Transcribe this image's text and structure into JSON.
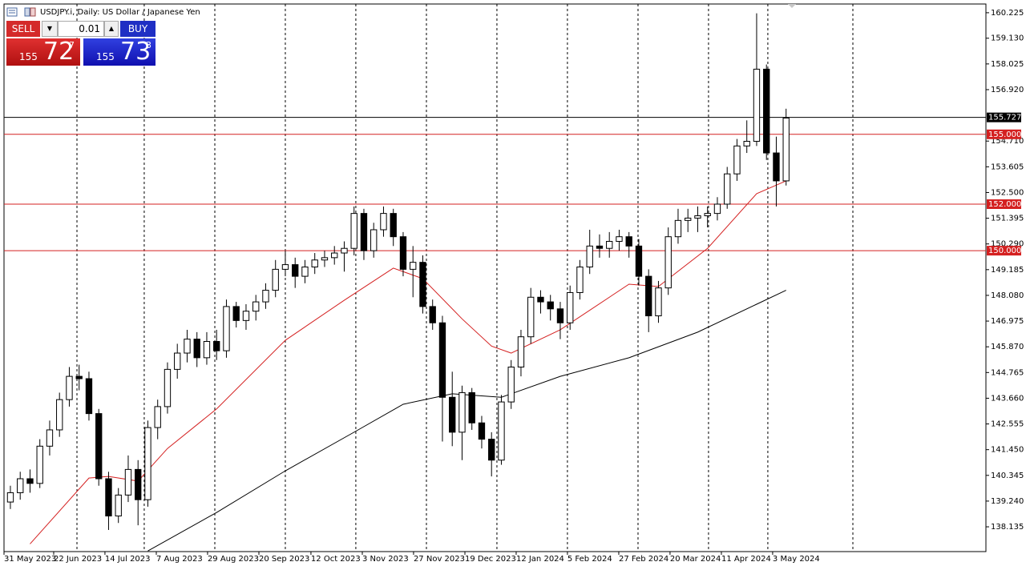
{
  "chart_data": {
    "type": "candlestick",
    "title": "USDJPY.i, Daily:  US Dollar / Japanese Yen",
    "ohlc": [
      [
        139.2,
        139.9,
        138.9,
        139.6
      ],
      [
        139.6,
        140.5,
        139.3,
        140.2
      ],
      [
        140.2,
        140.6,
        139.6,
        140.0
      ],
      [
        140.0,
        141.9,
        139.8,
        141.6
      ],
      [
        141.6,
        142.7,
        141.2,
        142.3
      ],
      [
        142.3,
        143.9,
        142.0,
        143.6
      ],
      [
        143.6,
        145.0,
        143.3,
        144.6
      ],
      [
        144.6,
        145.1,
        144.0,
        144.5
      ],
      [
        144.5,
        144.8,
        142.7,
        143.0
      ],
      [
        143.0,
        143.2,
        139.9,
        140.2
      ],
      [
        140.2,
        140.5,
        138.0,
        138.6
      ],
      [
        138.6,
        139.8,
        138.3,
        139.5
      ],
      [
        139.5,
        141.2,
        139.2,
        140.6
      ],
      [
        140.6,
        141.0,
        138.2,
        139.3
      ],
      [
        139.3,
        142.7,
        139.0,
        142.4
      ],
      [
        142.4,
        143.6,
        141.9,
        143.3
      ],
      [
        143.3,
        145.2,
        143.0,
        144.9
      ],
      [
        144.9,
        146.0,
        144.5,
        145.6
      ],
      [
        145.6,
        146.6,
        145.2,
        146.2
      ],
      [
        146.2,
        146.5,
        145.0,
        145.4
      ],
      [
        145.4,
        146.5,
        145.1,
        146.1
      ],
      [
        146.1,
        146.6,
        145.3,
        145.7
      ],
      [
        145.7,
        147.9,
        145.4,
        147.6
      ],
      [
        147.6,
        147.8,
        146.7,
        147.0
      ],
      [
        147.0,
        147.7,
        146.6,
        147.4
      ],
      [
        147.4,
        148.1,
        147.0,
        147.8
      ],
      [
        147.8,
        148.6,
        147.5,
        148.3
      ],
      [
        148.3,
        149.6,
        148.0,
        149.2
      ],
      [
        149.2,
        150.0,
        148.9,
        149.4
      ],
      [
        149.4,
        149.7,
        148.4,
        148.9
      ],
      [
        148.9,
        149.6,
        148.6,
        149.3
      ],
      [
        149.3,
        149.9,
        149.0,
        149.6
      ],
      [
        149.6,
        150.0,
        149.3,
        149.7
      ],
      [
        149.7,
        150.2,
        149.4,
        149.9
      ],
      [
        149.9,
        150.4,
        149.1,
        150.1
      ],
      [
        150.1,
        151.9,
        149.8,
        151.6
      ],
      [
        151.6,
        151.8,
        149.6,
        150.0
      ],
      [
        150.0,
        151.2,
        149.7,
        150.9
      ],
      [
        150.9,
        151.9,
        150.6,
        151.6
      ],
      [
        151.6,
        151.8,
        150.2,
        150.6
      ],
      [
        150.6,
        150.8,
        148.9,
        149.2
      ],
      [
        149.2,
        150.2,
        148.0,
        149.5
      ],
      [
        149.5,
        149.8,
        147.3,
        147.6
      ],
      [
        147.6,
        147.9,
        146.6,
        146.9
      ],
      [
        146.9,
        147.2,
        141.8,
        143.7
      ],
      [
        143.7,
        144.8,
        141.6,
        142.2
      ],
      [
        142.2,
        144.2,
        141.0,
        143.9
      ],
      [
        143.9,
        144.1,
        142.3,
        142.6
      ],
      [
        142.6,
        142.9,
        141.5,
        141.9
      ],
      [
        141.9,
        142.2,
        140.3,
        141.0
      ],
      [
        141.0,
        143.8,
        140.8,
        143.5
      ],
      [
        143.5,
        145.3,
        143.2,
        145.0
      ],
      [
        145.0,
        146.6,
        144.6,
        146.3
      ],
      [
        146.3,
        148.4,
        146.0,
        148.0
      ],
      [
        148.0,
        148.3,
        147.3,
        147.8
      ],
      [
        147.8,
        148.1,
        147.0,
        147.5
      ],
      [
        147.5,
        147.8,
        146.2,
        146.9
      ],
      [
        146.9,
        148.5,
        146.6,
        148.2
      ],
      [
        148.2,
        149.6,
        147.9,
        149.3
      ],
      [
        149.3,
        150.9,
        149.0,
        150.2
      ],
      [
        150.2,
        150.7,
        149.7,
        150.1
      ],
      [
        150.1,
        150.8,
        149.7,
        150.4
      ],
      [
        150.4,
        150.9,
        150.0,
        150.6
      ],
      [
        150.6,
        150.8,
        149.7,
        150.2
      ],
      [
        150.2,
        150.5,
        148.5,
        148.9
      ],
      [
        148.9,
        149.2,
        146.5,
        147.2
      ],
      [
        147.2,
        148.7,
        146.9,
        148.4
      ],
      [
        148.4,
        151.0,
        148.1,
        150.6
      ],
      [
        150.6,
        151.8,
        150.3,
        151.3
      ],
      [
        151.3,
        151.8,
        150.8,
        151.4
      ],
      [
        151.4,
        151.9,
        150.8,
        151.5
      ],
      [
        151.5,
        151.9,
        151.0,
        151.6
      ],
      [
        151.6,
        152.3,
        151.3,
        152.0
      ],
      [
        152.0,
        153.6,
        151.8,
        153.3
      ],
      [
        153.3,
        154.8,
        153.0,
        154.5
      ],
      [
        154.5,
        155.6,
        154.2,
        154.7
      ],
      [
        154.7,
        160.2,
        154.5,
        157.8
      ],
      [
        157.8,
        158.0,
        153.9,
        154.2
      ],
      [
        154.2,
        154.9,
        151.9,
        153.0
      ],
      [
        153.0,
        156.1,
        152.8,
        155.7
      ]
    ],
    "series": [
      {
        "color": "#d42020",
        "x": [
          2,
          8,
          10,
          13,
          16,
          21,
          28,
          34,
          39,
          42,
          46,
          49,
          51,
          56,
          63,
          66,
          71,
          76,
          79
        ],
        "values": [
          137.4,
          140.23,
          140.3,
          140.1,
          141.5,
          143.2,
          146.15,
          147.87,
          149.25,
          148.8,
          147.07,
          145.9,
          145.6,
          146.6,
          148.56,
          148.46,
          150.1,
          152.45,
          153.0
        ]
      },
      {
        "color": "#000000",
        "x": [
          14,
          21,
          28,
          35,
          40,
          45,
          50,
          56,
          63,
          70,
          76,
          79
        ],
        "values": [
          137.1,
          138.75,
          140.54,
          142.2,
          143.4,
          143.85,
          143.7,
          144.6,
          145.4,
          146.5,
          147.7,
          148.3
        ]
      }
    ],
    "up_color": "#ffffff",
    "down_color": "#000000",
    "xlim": [
      -0.65,
      99.35
    ],
    "ylim": [
      137.07,
      160.6
    ],
    "yticks": [
      160.225,
      {
        "value": 159.13,
        "label": "159.130"
      },
      158.025,
      {
        "value": 156.92,
        "label": "156.920"
      },
      {
        "value": 154.71,
        "label": "154.710"
      },
      153.605,
      {
        "value": 152.5,
        "label": "152.500"
      },
      151.395,
      {
        "value": 150.29,
        "label": "150.290"
      },
      149.185,
      {
        "value": 148.08,
        "label": "148.080"
      },
      146.975,
      {
        "value": 145.87,
        "label": "145.870"
      },
      144.765,
      {
        "value": 143.66,
        "label": "143.660"
      },
      142.555,
      {
        "value": 141.45,
        "label": "141.450"
      },
      140.345,
      {
        "value": 139.24,
        "label": "139.240"
      },
      138.135
    ],
    "xticks": [
      {
        "value": -0.65,
        "label": "31 May 2023"
      },
      {
        "value": 4.41,
        "label": "22 Jun 2023"
      },
      {
        "value": 9.63,
        "label": "14 Jul 2023"
      },
      {
        "value": 14.86,
        "label": "7 Aug 2023"
      },
      {
        "value": 20.08,
        "label": "29 Aug 2023"
      },
      {
        "value": 25.31,
        "label": "20 Sep 2023"
      },
      {
        "value": 30.61,
        "label": "12 Oct 2023"
      },
      {
        "value": 35.84,
        "label": "3 Nov 2023"
      },
      {
        "value": 41.06,
        "label": "27 Nov 2023"
      },
      {
        "value": 46.29,
        "label": "19 Dec 2023"
      },
      {
        "value": 51.51,
        "label": "12 Jan 2024"
      },
      {
        "value": 56.73,
        "label": "5 Feb 2024"
      },
      {
        "value": 61.96,
        "label": "27 Feb 2024"
      },
      {
        "value": 67.18,
        "label": "20 Mar 2024"
      },
      {
        "value": 72.41,
        "label": "11 Apr 2024"
      },
      {
        "value": 77.63,
        "label": "3 May 2024"
      }
    ],
    "xgrid": [
      6.78,
      13.63,
      20.82,
      28.0,
      35.18,
      42.37,
      49.55,
      56.73,
      63.92,
      71.1,
      77.14,
      85.8
    ],
    "current_price": 155.727,
    "current_price_color": "#000000",
    "levels": [
      {
        "value": 155,
        "label": "155.000"
      },
      {
        "value": 152,
        "label": "152.000"
      },
      {
        "value": 150,
        "label": "150.000"
      }
    ],
    "level_color": "#d42020"
  },
  "panel": {
    "sell": "SELL",
    "buy": "BUY",
    "lot": "0.01",
    "bid": {
      "big": "155",
      "main": "72",
      "pip": "7"
    },
    "ask": {
      "big": "155",
      "main": "73",
      "pip": "3"
    }
  }
}
